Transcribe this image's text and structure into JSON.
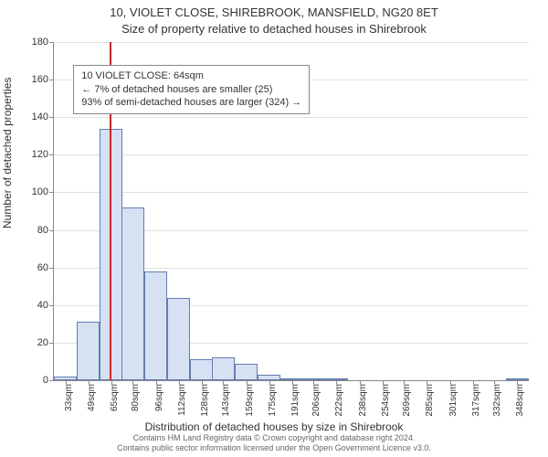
{
  "title": "10, VIOLET CLOSE, SHIREBROOK, MANSFIELD, NG20 8ET",
  "subtitle": "Size of property relative to detached houses in Shirebrook",
  "ylabel": "Number of detached properties",
  "xlabel": "Distribution of detached houses by size in Shirebrook",
  "footer_line1": "Contains HM Land Registry data © Crown copyright and database right 2024.",
  "footer_line2": "Contains public sector information licensed under the Open Government Licence v3.0.",
  "chart": {
    "type": "histogram",
    "background_color": "#ffffff",
    "grid_color": "#e0e0e0",
    "axis_color": "#888888",
    "bar_fill": "#d6e1f4",
    "bar_border": "rgba(70,100,160,0.8)",
    "marker_color": "#c62828",
    "marker_value": 64,
    "x_min": 25,
    "x_max": 356,
    "x_categories_numeric": [
      33,
      49,
      65,
      80,
      96,
      112,
      128,
      143,
      159,
      175,
      191,
      206,
      222,
      238,
      254,
      269,
      285,
      301,
      317,
      332,
      348
    ],
    "x_unit_suffix": "sqm",
    "bar_values": [
      2,
      31,
      134,
      92,
      58,
      44,
      11,
      12,
      9,
      3,
      1,
      1,
      1,
      0,
      0,
      0,
      0,
      0,
      0,
      0,
      1
    ],
    "ylim": [
      0,
      180
    ],
    "ytick_step": 20,
    "title_fontsize": 13,
    "label_fontsize": 12,
    "tick_fontsize": 11,
    "xtick_fontsize": 10,
    "annot": {
      "line1": "10 VIOLET CLOSE: 64sqm",
      "line2": "← 7% of detached houses are smaller (25)",
      "line3": "93% of semi-detached houses are larger (324) →",
      "border_color": "#888888",
      "background": "#ffffff",
      "fontsize": 11
    }
  }
}
